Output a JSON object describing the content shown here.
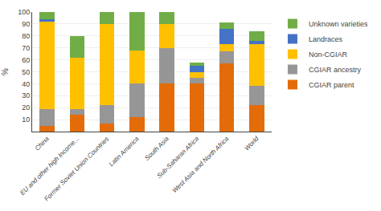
{
  "chart_data": {
    "type": "bar",
    "stacked": true,
    "categories": [
      "China",
      "EU and other high Income...",
      "Former Soviet Union Countries",
      "Latin America",
      "South Asia",
      "Sub-Saharan Africa",
      "West Asia and North Africa",
      "World"
    ],
    "series": [
      {
        "name": "CGIAR parent",
        "color": "#e36c09",
        "values": [
          5,
          14,
          7,
          12,
          40,
          40,
          57,
          22
        ]
      },
      {
        "name": "CGIAR ancestry",
        "color": "#969696",
        "values": [
          14,
          5,
          15,
          28,
          30,
          5,
          10,
          16
        ]
      },
      {
        "name": "Non-CGIAR",
        "color": "#ffc000",
        "values": [
          73,
          43,
          68,
          28,
          20,
          5,
          6,
          35
        ]
      },
      {
        "name": "Landraces",
        "color": "#4472c4",
        "values": [
          2,
          0,
          0,
          0,
          0,
          5,
          13,
          3
        ]
      },
      {
        "name": "Unknown varieties",
        "color": "#70ad47",
        "values": [
          6,
          18,
          10,
          32,
          10,
          3,
          5,
          8
        ]
      }
    ],
    "ylabel": "%",
    "ylim": [
      0,
      100
    ],
    "yticks": [
      10,
      20,
      30,
      40,
      50,
      60,
      70,
      80,
      90,
      100
    ],
    "grid": true,
    "legend": "right"
  }
}
